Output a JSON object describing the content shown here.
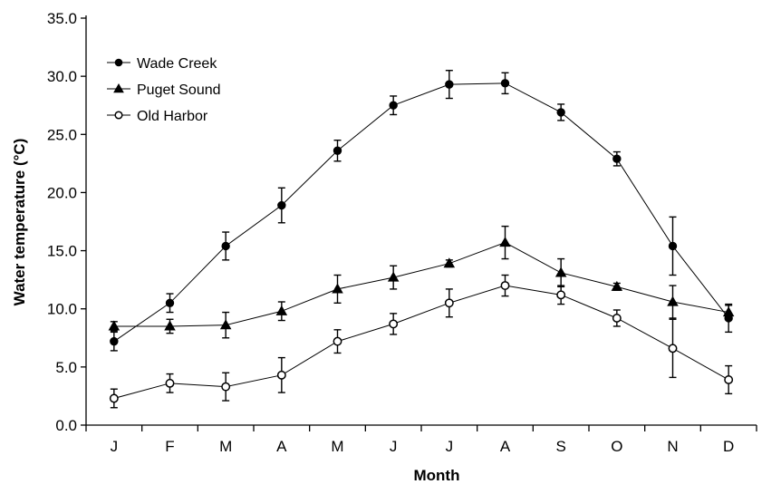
{
  "chart_data": {
    "type": "line",
    "title": "",
    "xlabel": "Month",
    "ylabel": "Water temperature (°C)",
    "ylim": [
      0,
      35
    ],
    "yticks": [
      "0.0",
      "5.0",
      "10.0",
      "15.0",
      "20.0",
      "25.0",
      "30.0",
      "35.0"
    ],
    "categories": [
      "J",
      "F",
      "M",
      "A",
      "M",
      "J",
      "J",
      "A",
      "S",
      "O",
      "N",
      "D"
    ],
    "grid": false,
    "legend_position": "top-left",
    "series": [
      {
        "name": "Wade Creek",
        "marker": "filled-circle",
        "values": [
          7.2,
          10.5,
          15.4,
          18.9,
          23.6,
          27.5,
          29.3,
          29.4,
          26.9,
          22.9,
          15.4,
          9.2
        ],
        "errors": [
          0.8,
          0.8,
          1.2,
          1.5,
          0.9,
          0.8,
          1.2,
          0.9,
          0.7,
          0.6,
          2.5,
          1.2
        ]
      },
      {
        "name": "Puget Sound",
        "marker": "filled-triangle",
        "values": [
          8.5,
          8.5,
          8.6,
          9.8,
          11.7,
          12.7,
          13.9,
          15.7,
          13.1,
          11.9,
          10.6,
          9.7
        ],
        "errors": [
          0.4,
          0.6,
          1.1,
          0.8,
          1.2,
          1.0,
          0.3,
          1.4,
          1.2,
          0.3,
          1.4,
          0.6
        ]
      },
      {
        "name": "Old Harbor",
        "marker": "open-circle",
        "values": [
          2.3,
          3.6,
          3.3,
          4.3,
          7.2,
          8.7,
          10.5,
          12.0,
          11.2,
          9.2,
          6.6,
          3.9
        ],
        "errors": [
          0.8,
          0.8,
          1.2,
          1.5,
          1.0,
          0.9,
          1.2,
          0.9,
          0.8,
          0.7,
          2.5,
          1.2
        ]
      }
    ]
  }
}
